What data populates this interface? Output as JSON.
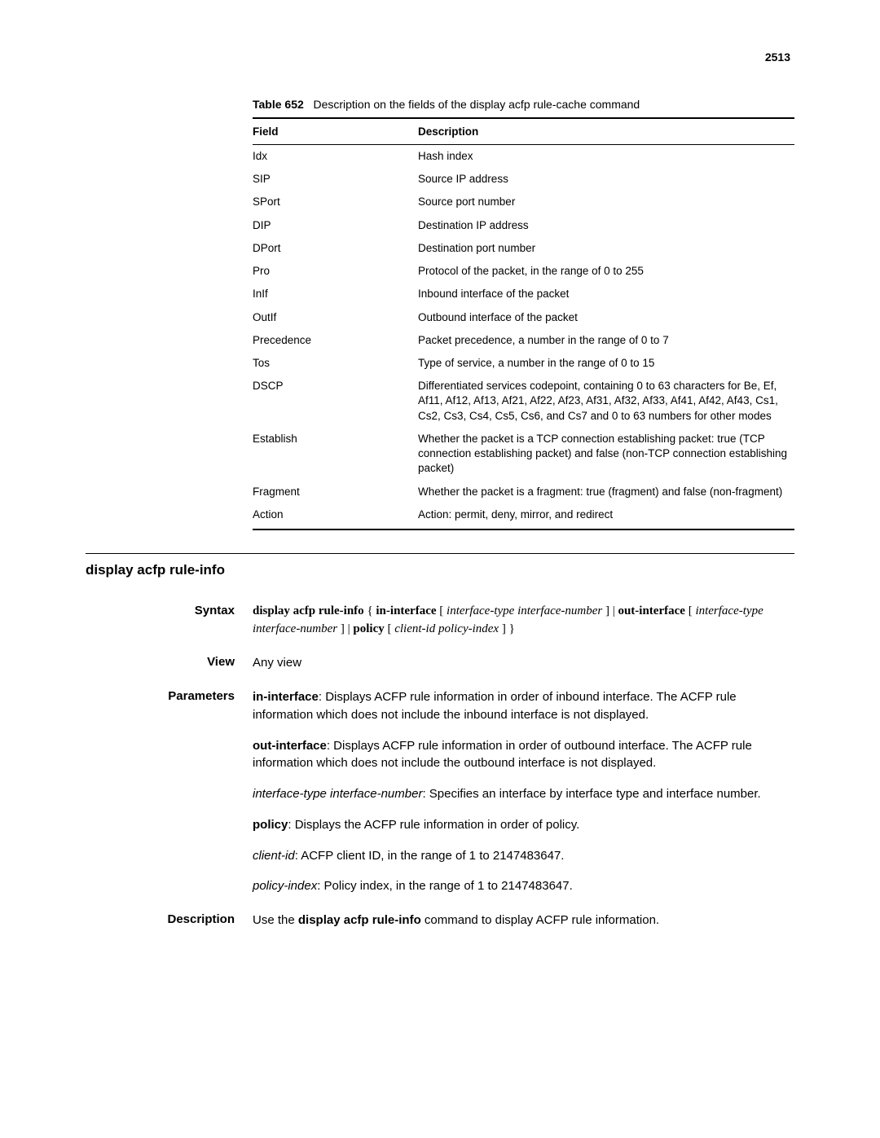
{
  "page_number": "2513",
  "table": {
    "caption_label": "Table 652",
    "caption_text": "Description on the fields of the display acfp rule-cache command",
    "header_field": "Field",
    "header_desc": "Description",
    "rows": [
      {
        "field": "Idx",
        "desc": "Hash index"
      },
      {
        "field": "SIP",
        "desc": "Source IP address"
      },
      {
        "field": "SPort",
        "desc": "Source port number"
      },
      {
        "field": "DIP",
        "desc": "Destination IP address"
      },
      {
        "field": "DPort",
        "desc": "Destination port number"
      },
      {
        "field": "Pro",
        "desc": "Protocol of the packet, in the range of 0 to 255"
      },
      {
        "field": "InIf",
        "desc": "Inbound interface of the packet"
      },
      {
        "field": "OutIf",
        "desc": "Outbound interface of the packet"
      },
      {
        "field": "Precedence",
        "desc": "Packet precedence, a number in the range of 0 to 7"
      },
      {
        "field": "Tos",
        "desc": "Type of service, a number in the range of 0 to 15"
      },
      {
        "field": "DSCP",
        "desc": "Differentiated services codepoint, containing 0 to 63 characters for Be, Ef, Af11, Af12, Af13, Af21, Af22, Af23, Af31, Af32, Af33, Af41, Af42, Af43, Cs1, Cs2, Cs3, Cs4, Cs5, Cs6, and Cs7 and 0 to 63 numbers for other modes"
      },
      {
        "field": "Establish",
        "desc": "Whether the packet is a TCP connection establishing packet: true (TCP connection establishing packet) and false (non-TCP connection establishing packet)"
      },
      {
        "field": "Fragment",
        "desc": "Whether the packet is a fragment: true (fragment) and false (non-fragment)"
      },
      {
        "field": "Action",
        "desc": "Action: permit, deny, mirror, and redirect"
      }
    ]
  },
  "section_title": "display acfp rule-info",
  "defs": {
    "syntax_label": "Syntax",
    "syntax": {
      "s1": "display acfp rule-info",
      "s2": " { ",
      "s3": "in-interface",
      "s4": " [ ",
      "s5": "interface-type interface-number",
      "s6": " ] | ",
      "s7": "out-interface",
      "s8": " [ ",
      "s9": "interface-type interface-number",
      "s10": " ] | ",
      "s11": "policy",
      "s12": " [ ",
      "s13": "client-id policy-index",
      "s14": " ] }"
    },
    "view_label": "View",
    "view_text": "Any view",
    "parameters_label": "Parameters",
    "params": {
      "p1a": "in-interface",
      "p1b": ": Displays ACFP rule information in order of inbound interface. The ACFP rule information which does not include the inbound interface is not displayed.",
      "p2a": "out-interface",
      "p2b": ": Displays ACFP rule information in order of outbound interface. The ACFP rule information which does not include the outbound interface is not displayed.",
      "p3a": "interface-type interface-number",
      "p3b": ": Specifies an interface by interface type and interface number.",
      "p4a": "policy",
      "p4b": ": Displays the ACFP rule information in order of policy.",
      "p5a": "client-id",
      "p5b": ": ACFP client ID, in the range of 1 to 2147483647.",
      "p6a": "policy-index",
      "p6b": ": Policy index, in the range of 1 to 2147483647."
    },
    "description_label": "Description",
    "desc": {
      "d1": "Use the ",
      "d2": "display acfp rule-info",
      "d3": " command to display ACFP rule information."
    }
  }
}
